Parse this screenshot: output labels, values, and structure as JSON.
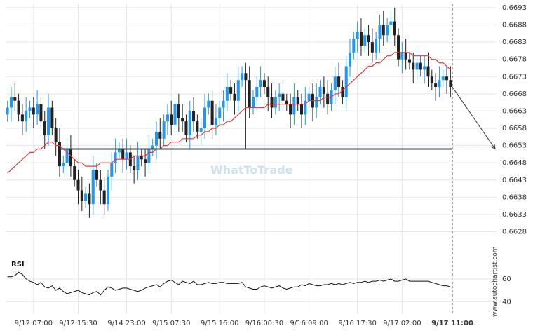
{
  "colors": {
    "up": "#2196f3",
    "down": "#212121",
    "ma": "#e53935",
    "level": "#37474f",
    "rsi": "#111111",
    "grid": "#e6e6e6",
    "watermark": "#cfe0ee"
  },
  "watermark": "WhatToTrade",
  "side_text": "www.autochartist.com",
  "rsi_label": "RSI",
  "chart_data": [
    {
      "type": "candlestick",
      "title": "",
      "ylim": [
        0.6622,
        0.6694
      ],
      "y_ticks": [
        "0.6693",
        "0.6688",
        "0.6683",
        "0.6678",
        "0.6673",
        "0.6668",
        "0.6663",
        "0.6658",
        "0.6653",
        "0.6648",
        "0.6643",
        "0.6638",
        "0.6633",
        "0.6628"
      ],
      "x_ticks": [
        "9/12 07:00",
        "9/12 15:30",
        "9/14 23:00",
        "9/15 07:30",
        "9/15 16:00",
        "9/16 00:30",
        "9/16 09:00",
        "9/16 17:30",
        "9/17 02:00",
        "9/17 11:00"
      ],
      "grid": true,
      "price_series": {
        "name": "",
        "close": [
          0.6664,
          0.6667,
          0.6666,
          0.6662,
          0.666,
          0.6663,
          0.6664,
          0.6662,
          0.6665,
          0.666,
          0.6656,
          0.6664,
          0.6658,
          0.6654,
          0.6647,
          0.6648,
          0.6652,
          0.6647,
          0.6643,
          0.664,
          0.6637,
          0.6639,
          0.6636,
          0.6646,
          0.6643,
          0.664,
          0.6636,
          0.6644,
          0.6648,
          0.6651,
          0.6652,
          0.6649,
          0.6651,
          0.6647,
          0.6646,
          0.665,
          0.6649,
          0.6648,
          0.6652,
          0.6653,
          0.6657,
          0.6655,
          0.666,
          0.6662,
          0.6659,
          0.6665,
          0.6661,
          0.666,
          0.6656,
          0.6663,
          0.666,
          0.6657,
          0.6658,
          0.6664,
          0.6666,
          0.6659,
          0.6661,
          0.6664,
          0.6666,
          0.667,
          0.6668,
          0.6666,
          0.6672,
          0.6674,
          0.6672,
          0.6664,
          0.6667,
          0.667,
          0.6672,
          0.667,
          0.6667,
          0.6664,
          0.6667,
          0.6668,
          0.6666,
          0.6665,
          0.6662,
          0.6667,
          0.6665,
          0.6662,
          0.6666,
          0.6668,
          0.6664,
          0.6667,
          0.667,
          0.6668,
          0.6665,
          0.6669,
          0.6673,
          0.667,
          0.6667,
          0.6676,
          0.668,
          0.6684,
          0.6686,
          0.6682,
          0.6685,
          0.6683,
          0.668,
          0.6684,
          0.6688,
          0.6685,
          0.6688,
          0.6689,
          0.6685,
          0.6678,
          0.668,
          0.6678,
          0.6677,
          0.6675,
          0.6677,
          0.6675,
          0.6676,
          0.6673,
          0.6671,
          0.667,
          0.6672,
          0.6673,
          0.6672,
          0.667
        ],
        "ma": [
          0.6645,
          0.6646,
          0.6647,
          0.6648,
          0.6649,
          0.665,
          0.6651,
          0.6651,
          0.6652,
          0.6652,
          0.6653,
          0.6654,
          0.6654,
          0.6653,
          0.6653,
          0.6652,
          0.6651,
          0.665,
          0.6649,
          0.6648,
          0.6648,
          0.6647,
          0.6647,
          0.6647,
          0.6647,
          0.6648,
          0.6648,
          0.6648,
          0.6648,
          0.6649,
          0.6649,
          0.6649,
          0.6649,
          0.6649,
          0.665,
          0.665,
          0.665,
          0.665,
          0.6651,
          0.6651,
          0.6652,
          0.6652,
          0.6653,
          0.6653,
          0.6654,
          0.6654,
          0.6654,
          0.6655,
          0.6655,
          0.6655,
          0.6655,
          0.6656,
          0.6656,
          0.6657,
          0.6657,
          0.6658,
          0.6658,
          0.6659,
          0.6659,
          0.666,
          0.666,
          0.6661,
          0.6662,
          0.6663,
          0.6664,
          0.6664,
          0.6664,
          0.6664,
          0.6664,
          0.6664,
          0.6665,
          0.6665,
          0.6665,
          0.6665,
          0.6665,
          0.6665,
          0.6665,
          0.6665,
          0.6665,
          0.6665,
          0.6665,
          0.6666,
          0.6666,
          0.6666,
          0.6666,
          0.6667,
          0.6667,
          0.6667,
          0.6668,
          0.6668,
          0.6669,
          0.667,
          0.6671,
          0.6672,
          0.6673,
          0.6674,
          0.6675,
          0.6676,
          0.6676,
          0.6677,
          0.6677,
          0.6678,
          0.6679,
          0.6679,
          0.668,
          0.668,
          0.668,
          0.668,
          0.668,
          0.6679,
          0.6679,
          0.6679,
          0.6679,
          0.6679,
          0.6678,
          0.6678,
          0.6677,
          0.6677,
          0.6676,
          0.6675
        ]
      },
      "support_level": 0.6652,
      "forecast_target": 0.6652,
      "spike_index": 64,
      "spike_low": 0.6652,
      "rsi": {
        "label": "RSI",
        "ylim": [
          34,
          76
        ],
        "y_ticks": [
          "60",
          "40"
        ],
        "values": [
          62,
          62,
          63,
          66,
          64,
          60,
          58,
          57,
          55,
          57,
          53,
          52,
          54,
          50,
          52,
          49,
          47,
          48,
          49,
          50,
          48,
          47,
          46,
          48,
          49,
          46,
          50,
          53,
          52,
          50,
          51,
          52,
          52,
          51,
          50,
          49,
          50,
          52,
          53,
          54,
          55,
          53,
          56,
          58,
          59,
          57,
          55,
          58,
          57,
          56,
          58,
          55,
          55,
          56,
          57,
          56,
          56,
          57,
          57,
          56,
          56,
          56,
          56,
          57,
          53,
          52,
          51,
          51,
          53,
          54,
          53,
          52,
          53,
          54,
          52,
          51,
          52,
          53,
          53,
          55,
          54,
          56,
          55,
          54,
          54,
          55,
          55,
          56,
          55,
          56,
          55,
          56,
          57,
          56,
          57,
          57,
          58,
          57,
          58,
          58,
          59,
          58,
          59,
          60,
          58,
          58,
          59,
          60,
          58,
          58,
          58,
          58,
          58,
          58,
          57,
          56,
          55,
          54,
          54,
          53
        ]
      }
    }
  ]
}
